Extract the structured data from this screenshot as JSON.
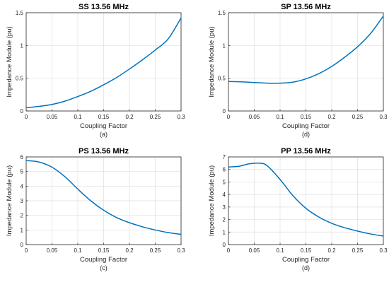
{
  "chart_data": [
    {
      "type": "line",
      "title": "SS 13.56 MHz",
      "caption": "(a)",
      "xlabel": "Coupling Factor",
      "ylabel": "Impedance Module (pu)",
      "xlim": [
        0,
        0.3
      ],
      "ylim": [
        0,
        1.5
      ],
      "xticks": [
        0,
        0.05,
        0.1,
        0.15,
        0.2,
        0.25,
        0.3
      ],
      "xtick_labels": [
        "0",
        "0.05",
        "0.1",
        "0.15",
        "0.2",
        "0.25",
        "0.3"
      ],
      "yticks": [
        0,
        0.5,
        1,
        1.5
      ],
      "ytick_labels": [
        "0",
        "0.5",
        "1",
        "1.5"
      ],
      "grid": true,
      "color": "#0072BD",
      "x": [
        0,
        0.025,
        0.05,
        0.075,
        0.1,
        0.125,
        0.15,
        0.175,
        0.2,
        0.225,
        0.25,
        0.275,
        0.3
      ],
      "y": [
        0.05,
        0.07,
        0.1,
        0.15,
        0.22,
        0.3,
        0.4,
        0.51,
        0.64,
        0.78,
        0.93,
        1.1,
        1.42
      ]
    },
    {
      "type": "line",
      "title": "SP 13.56 MHz",
      "caption": "(d)",
      "xlabel": "Coupling Factor",
      "ylabel": "Impedance Module (pu)",
      "xlim": [
        0,
        0.3
      ],
      "ylim": [
        0,
        1.5
      ],
      "xticks": [
        0,
        0.05,
        0.1,
        0.15,
        0.2,
        0.25,
        0.3
      ],
      "xtick_labels": [
        "0",
        "0.05",
        "0.1",
        "0.15",
        "0.2",
        "0.25",
        "0.3"
      ],
      "yticks": [
        0,
        0.5,
        1,
        1.5
      ],
      "ytick_labels": [
        "0",
        "0.5",
        "1",
        "1.5"
      ],
      "grid": true,
      "color": "#0072BD",
      "x": [
        0,
        0.025,
        0.05,
        0.075,
        0.1,
        0.125,
        0.15,
        0.175,
        0.2,
        0.225,
        0.25,
        0.275,
        0.3
      ],
      "y": [
        0.45,
        0.445,
        0.435,
        0.425,
        0.425,
        0.44,
        0.49,
        0.57,
        0.68,
        0.82,
        0.98,
        1.18,
        1.45
      ]
    },
    {
      "type": "line",
      "title": "PS 13.56 MHz",
      "caption": "(c)",
      "xlabel": "Coupling Factor",
      "ylabel": "Impedance Module (pu)",
      "xlim": [
        0,
        0.3
      ],
      "ylim": [
        0,
        6
      ],
      "xticks": [
        0,
        0.05,
        0.1,
        0.15,
        0.2,
        0.25,
        0.3
      ],
      "xtick_labels": [
        "0",
        "0.05",
        "0.1",
        "0.15",
        "0.2",
        "0.25",
        "0.3"
      ],
      "yticks": [
        0,
        1,
        2,
        3,
        4,
        5,
        6
      ],
      "ytick_labels": [
        "0",
        "1",
        "2",
        "3",
        "4",
        "5",
        "6"
      ],
      "grid": true,
      "color": "#0072BD",
      "x": [
        0,
        0.025,
        0.05,
        0.075,
        0.1,
        0.125,
        0.15,
        0.175,
        0.2,
        0.225,
        0.25,
        0.275,
        0.3
      ],
      "y": [
        5.75,
        5.65,
        5.3,
        4.65,
        3.8,
        3.0,
        2.35,
        1.85,
        1.5,
        1.22,
        1.0,
        0.82,
        0.7
      ]
    },
    {
      "type": "line",
      "title": "PP 13.56 MHz",
      "caption": "(d)",
      "xlabel": "Coupling Factor",
      "ylabel": "Impedance Module (pu)",
      "xlim": [
        0,
        0.3
      ],
      "ylim": [
        0,
        7
      ],
      "xticks": [
        0,
        0.05,
        0.1,
        0.15,
        0.2,
        0.25,
        0.3
      ],
      "xtick_labels": [
        "0",
        "0.05",
        "0.1",
        "0.15",
        "0.2",
        "0.25",
        "0.3"
      ],
      "yticks": [
        0,
        1,
        2,
        3,
        4,
        5,
        6,
        7
      ],
      "ytick_labels": [
        "0",
        "1",
        "2",
        "3",
        "4",
        "5",
        "6",
        "7"
      ],
      "grid": true,
      "color": "#0072BD",
      "x": [
        0,
        0.02,
        0.04,
        0.06,
        0.075,
        0.1,
        0.125,
        0.15,
        0.175,
        0.2,
        0.225,
        0.25,
        0.275,
        0.3
      ],
      "y": [
        6.2,
        6.25,
        6.45,
        6.5,
        6.3,
        5.2,
        3.9,
        2.9,
        2.2,
        1.7,
        1.35,
        1.08,
        0.85,
        0.68
      ]
    }
  ]
}
